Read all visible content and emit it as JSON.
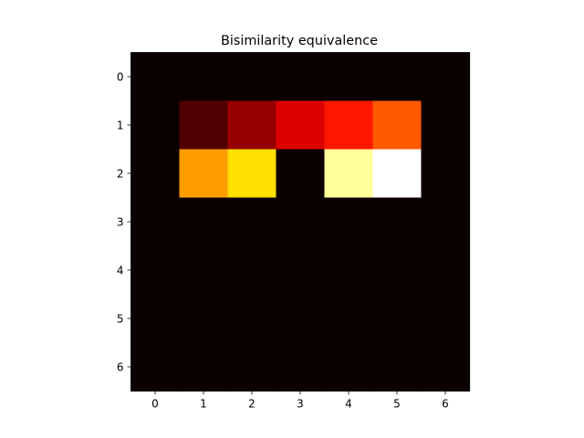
{
  "chart_data": {
    "type": "heatmap",
    "title": "Bisimilarity equivalence",
    "xlabel": "",
    "ylabel": "",
    "x_ticks": [
      "0",
      "1",
      "2",
      "3",
      "4",
      "5",
      "6"
    ],
    "y_ticks": [
      "0",
      "1",
      "2",
      "3",
      "4",
      "5",
      "6"
    ],
    "colormap": "hot",
    "grid": false,
    "legend": "none",
    "vmin": 0,
    "vmax": 10,
    "values": [
      [
        0,
        0,
        0,
        0,
        0,
        0,
        0
      ],
      [
        0,
        1,
        2,
        3,
        4,
        5,
        0
      ],
      [
        0,
        6,
        7,
        0,
        9,
        10,
        0
      ],
      [
        0,
        0,
        0,
        0,
        0,
        0,
        0
      ],
      [
        0,
        0,
        0,
        0,
        0,
        0,
        0
      ],
      [
        0,
        0,
        0,
        0,
        0,
        0,
        0
      ],
      [
        0,
        0,
        0,
        0,
        0,
        0,
        0
      ]
    ]
  }
}
